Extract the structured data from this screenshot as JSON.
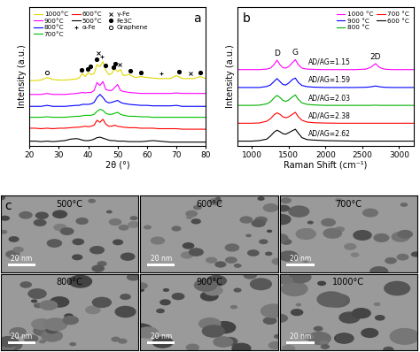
{
  "chart_data": [
    {
      "type": "line",
      "panel": "a",
      "x_label": "2θ (°)",
      "y_label": "Intensity (a.u.)",
      "x": [
        20,
        22,
        24,
        26,
        28,
        30,
        32,
        34,
        36,
        37,
        38,
        39,
        40,
        41,
        42,
        43,
        44,
        45,
        46,
        47,
        48,
        49,
        50,
        51,
        52,
        54,
        56,
        58,
        60,
        62,
        64,
        66,
        68,
        70,
        72,
        74,
        76,
        78,
        80
      ],
      "xlim": [
        20,
        80
      ],
      "xticks": [
        20,
        30,
        40,
        50,
        60,
        70,
        80
      ],
      "ylim": [
        0,
        14
      ],
      "yticks": [],
      "tick_labels": "x",
      "legend": "upper left",
      "series": [
        {
          "name": "1000°C",
          "color": "#e0d800",
          "values": [
            6.6,
            6.6,
            6.65,
            6.9,
            6.7,
            6.65,
            6.65,
            6.7,
            6.75,
            6.9,
            7.3,
            7.0,
            7.4,
            7.2,
            7.3,
            8.2,
            8.0,
            8.5,
            7.6,
            7.2,
            7.3,
            7.8,
            7.5,
            7.7,
            7.1,
            7.2,
            6.9,
            7.0,
            6.9,
            6.85,
            6.8,
            6.8,
            6.8,
            7.1,
            6.8,
            6.8,
            6.8,
            7.0,
            6.8
          ]
        },
        {
          "name": "900°C",
          "color": "#ff00ff",
          "values": [
            5.2,
            5.2,
            5.2,
            5.3,
            5.2,
            5.2,
            5.2,
            5.25,
            5.3,
            5.35,
            5.4,
            5.35,
            5.4,
            5.4,
            5.6,
            6.4,
            6.1,
            6.5,
            5.7,
            5.6,
            5.6,
            5.9,
            6.2,
            5.6,
            5.5,
            5.4,
            5.35,
            5.3,
            5.3,
            5.3,
            5.3,
            5.3,
            5.3,
            5.35,
            5.3,
            5.3,
            5.3,
            5.3,
            5.3
          ]
        },
        {
          "name": "800°C",
          "color": "#0000ff",
          "values": [
            4.0,
            4.0,
            4.0,
            4.1,
            4.0,
            4.0,
            4.0,
            4.05,
            4.1,
            4.1,
            4.2,
            4.2,
            4.2,
            4.25,
            4.4,
            4.9,
            5.2,
            4.9,
            4.5,
            4.35,
            4.4,
            4.5,
            4.6,
            4.4,
            4.3,
            4.2,
            4.15,
            4.1,
            4.1,
            4.05,
            4.05,
            4.05,
            4.05,
            4.1,
            4.0,
            4.0,
            4.0,
            4.0,
            4.0
          ]
        },
        {
          "name": "700°C",
          "color": "#00c000",
          "values": [
            2.9,
            2.9,
            2.9,
            2.95,
            2.9,
            2.9,
            2.9,
            2.95,
            3.0,
            3.0,
            3.05,
            3.1,
            3.1,
            3.1,
            3.2,
            3.5,
            3.7,
            3.6,
            3.3,
            3.2,
            3.2,
            3.3,
            3.4,
            3.2,
            3.1,
            3.0,
            3.0,
            2.95,
            2.95,
            2.9,
            2.9,
            2.9,
            2.9,
            2.9,
            2.9,
            2.9,
            2.9,
            2.9,
            2.9
          ]
        },
        {
          "name": "600°C",
          "color": "#ff0000",
          "values": [
            1.8,
            1.8,
            1.75,
            1.8,
            1.75,
            1.8,
            1.8,
            1.85,
            1.9,
            1.9,
            1.95,
            2.0,
            1.95,
            2.0,
            2.1,
            2.6,
            2.4,
            2.7,
            2.2,
            2.0,
            2.0,
            2.1,
            2.0,
            1.95,
            1.9,
            1.85,
            1.85,
            1.8,
            1.8,
            1.8,
            1.75,
            1.75,
            1.75,
            1.75,
            1.7,
            1.7,
            1.7,
            1.7,
            1.7
          ]
        },
        {
          "name": "500°C",
          "color": "#000000",
          "values": [
            0.5,
            0.5,
            0.45,
            0.5,
            0.45,
            0.5,
            0.55,
            0.7,
            0.75,
            0.7,
            0.6,
            0.55,
            0.55,
            0.6,
            0.7,
            0.85,
            0.9,
            0.8,
            0.7,
            0.6,
            0.55,
            0.55,
            0.5,
            0.5,
            0.5,
            0.45,
            0.45,
            0.45,
            0.5,
            0.55,
            0.5,
            0.45,
            0.4,
            0.4,
            0.4,
            0.4,
            0.4,
            0.4,
            0.4
          ]
        },
        {
          "name": "α-Fe",
          "type": "scatter",
          "marker": "plus",
          "color": "#000000",
          "x": [
            44.7,
            65.0
          ],
          "values": [
            9.0,
            7.3
          ]
        },
        {
          "name": "γ-Fe",
          "type": "scatter",
          "marker": "x",
          "color": "#000000",
          "x": [
            43.6,
            50.7,
            74.7
          ],
          "values": [
            9.4,
            8.2,
            7.3
          ]
        },
        {
          "name": "Fe3C",
          "type": "scatter",
          "marker": "dot",
          "color": "#000000",
          "x": [
            37.7,
            39.8,
            40.6,
            42.9,
            45.9,
            48.6,
            49.1,
            54.4,
            58.0,
            70.8,
            78.0
          ],
          "values": [
            7.7,
            7.8,
            8.0,
            8.7,
            8.1,
            7.9,
            8.3,
            7.6,
            7.4,
            7.5,
            7.4
          ]
        },
        {
          "name": "Graphene",
          "type": "scatter",
          "marker": "circle",
          "color": "#000000",
          "x": [
            26.0
          ],
          "values": [
            7.4
          ]
        }
      ]
    },
    {
      "type": "line",
      "panel": "b",
      "x_label": "Raman Shift (cm⁻¹)",
      "y_label": "Intensity (a.u.)",
      "x": [
        800,
        900,
        1000,
        1100,
        1200,
        1250,
        1300,
        1340,
        1380,
        1420,
        1460,
        1500,
        1550,
        1590,
        1630,
        1680,
        1750,
        1850,
        2000,
        2200,
        2400,
        2550,
        2620,
        2680,
        2740,
        2800,
        2900,
        3000,
        3200
      ],
      "xlim": [
        800,
        3200
      ],
      "xticks": [
        1000,
        1500,
        2000,
        2500,
        3000
      ],
      "ylim": [
        0,
        14
      ],
      "yticks": [],
      "tick_labels": "x",
      "legend": "upper right",
      "peak_labels": [
        {
          "text": "D",
          "x": 1340
        },
        {
          "text": "G",
          "x": 1590
        },
        {
          "text": "2D",
          "x": 2680
        }
      ],
      "series": [
        {
          "name": "1000 °C",
          "color": "#ff00ff",
          "label": "AD/AG=1.15",
          "values": [
            7.7,
            7.7,
            7.7,
            7.7,
            7.75,
            7.85,
            8.2,
            8.65,
            8.2,
            7.9,
            7.85,
            8.0,
            8.4,
            8.7,
            8.2,
            7.85,
            7.75,
            7.72,
            7.7,
            7.7,
            7.7,
            7.75,
            7.95,
            8.3,
            7.9,
            7.75,
            7.7,
            7.7,
            7.7
          ]
        },
        {
          "name": "900 °C",
          "color": "#0000ff",
          "label": "AD/AG=1.59",
          "values": [
            5.9,
            5.9,
            5.9,
            5.9,
            6.0,
            6.15,
            6.5,
            6.8,
            6.5,
            6.2,
            6.15,
            6.35,
            6.7,
            6.85,
            6.4,
            6.1,
            5.98,
            5.93,
            5.9,
            5.9,
            5.9,
            5.92,
            5.97,
            6.05,
            5.97,
            5.92,
            5.9,
            5.9,
            5.9
          ]
        },
        {
          "name": "800 °C",
          "color": "#00b000",
          "label": "AD/AG=2.03",
          "values": [
            4.1,
            4.1,
            4.1,
            4.12,
            4.25,
            4.45,
            4.85,
            5.1,
            4.9,
            4.6,
            4.5,
            4.65,
            4.95,
            5.15,
            4.7,
            4.35,
            4.2,
            4.14,
            4.1,
            4.1,
            4.1,
            4.1,
            4.1,
            4.12,
            4.1,
            4.1,
            4.1,
            4.1,
            4.1
          ]
        },
        {
          "name": "700 °C",
          "color": "#ff0000",
          "label": "AD/AG=2.38",
          "values": [
            2.3,
            2.3,
            2.3,
            2.33,
            2.5,
            2.75,
            3.15,
            3.35,
            3.2,
            2.95,
            2.85,
            2.95,
            3.2,
            3.4,
            2.95,
            2.6,
            2.42,
            2.35,
            2.32,
            2.3,
            2.3,
            2.3,
            2.3,
            2.3,
            2.3,
            2.3,
            2.3,
            2.3,
            2.3
          ]
        },
        {
          "name": "600 °C",
          "color": "#000000",
          "label": "AD/AG=2.62",
          "values": [
            0.5,
            0.5,
            0.5,
            0.55,
            0.7,
            1.0,
            1.4,
            1.6,
            1.45,
            1.25,
            1.2,
            1.35,
            1.55,
            1.7,
            1.3,
            0.85,
            0.65,
            0.6,
            0.55,
            0.52,
            0.5,
            0.5,
            0.5,
            0.5,
            0.5,
            0.5,
            0.5,
            0.5,
            0.5
          ]
        }
      ]
    }
  ],
  "micrographs": {
    "panel": "c",
    "scale_bar": "20 nm",
    "labels": [
      "500°C",
      "600°C",
      "700°C",
      "800°C",
      "900°C",
      "1000°C"
    ]
  }
}
